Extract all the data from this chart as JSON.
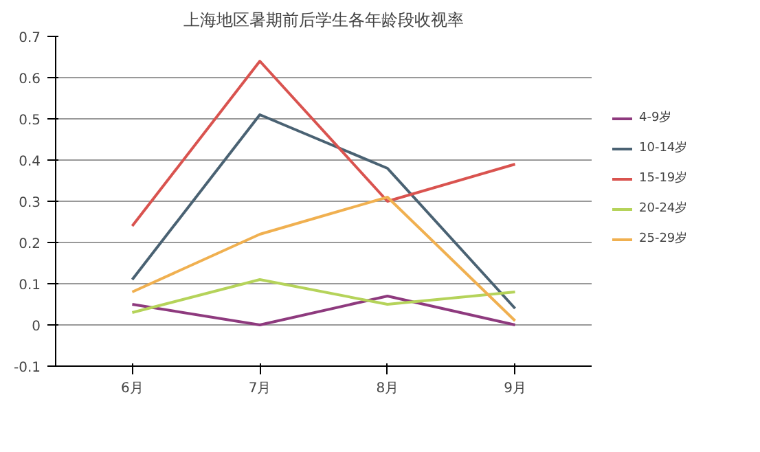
{
  "chart_data": {
    "type": "line",
    "title": "上海地区暑期前后学生各年龄段收视率",
    "categories": [
      "6月",
      "7月",
      "8月",
      "9月"
    ],
    "series": [
      {
        "name": "4-9岁",
        "color": "#8e3a7e",
        "values": [
          0.05,
          0.0,
          0.07,
          0.0
        ]
      },
      {
        "name": "10-14岁",
        "color": "#4a6273",
        "values": [
          0.11,
          0.51,
          0.38,
          0.04
        ]
      },
      {
        "name": "15-19岁",
        "color": "#d9534f",
        "values": [
          0.24,
          0.64,
          0.3,
          0.39
        ]
      },
      {
        "name": "20-24岁",
        "color": "#b5d35a",
        "values": [
          0.03,
          0.11,
          0.05,
          0.08
        ]
      },
      {
        "name": "25-29岁",
        "color": "#f0b050",
        "values": [
          0.08,
          0.22,
          0.31,
          0.01
        ]
      }
    ],
    "ylim": [
      -0.1,
      0.7
    ],
    "yticks": [
      -0.1,
      0,
      0.1,
      0.2,
      0.3,
      0.4,
      0.5,
      0.6,
      0.7
    ],
    "grid": "y",
    "legend": "right"
  }
}
